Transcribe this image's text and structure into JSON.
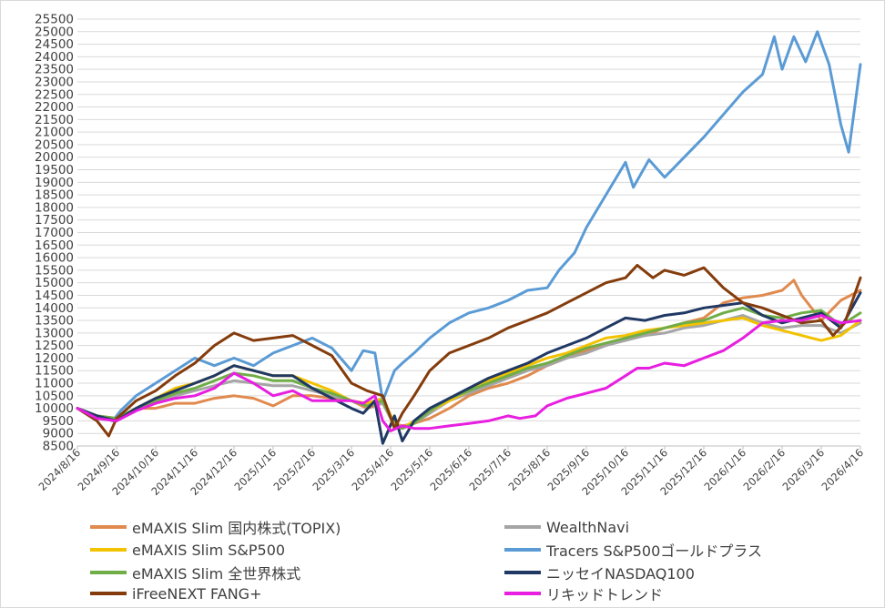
{
  "chart_data": {
    "type": "line",
    "title": "",
    "xlabel": "",
    "ylabel": "",
    "ylim": [
      8500,
      25500
    ],
    "ytick_step": 500,
    "x_tick_labels": [
      "2024/8/16",
      "2024/9/16",
      "2024/10/16",
      "2024/11/16",
      "2024/12/16",
      "2025/1/16",
      "2025/2/16",
      "2025/3/16",
      "2025/4/16",
      "2025/5/16",
      "2025/6/16",
      "2025/7/16",
      "2025/8/16",
      "2025/9/16",
      "2025/10/16",
      "2025/11/16",
      "2025/12/16",
      "2026/1/16",
      "2026/2/16",
      "2026/3/16",
      "2026/4/16"
    ],
    "x_unit": "month index from 2024/8/16",
    "grid": "horizontal",
    "legend_position": "bottom, two columns",
    "series": [
      {
        "name": "eMAXIS Slim 国内株式(TOPIX)",
        "color": "#e08a4f",
        "x": [
          0,
          0.5,
          1,
          1.5,
          2,
          2.5,
          3,
          3.5,
          4,
          4.5,
          5,
          5.5,
          6,
          6.5,
          7,
          7.4,
          7.8,
          8.1,
          8.3,
          8.6,
          9,
          9.5,
          10,
          10.5,
          11,
          11.5,
          12,
          12.5,
          13,
          13.5,
          14,
          14.5,
          15,
          15.5,
          16,
          16.5,
          17,
          17.5,
          18,
          18.3,
          18.5,
          19,
          19.5,
          20
        ],
        "y": [
          10000,
          9700,
          9600,
          10000,
          10000,
          10200,
          10200,
          10400,
          10500,
          10400,
          10100,
          10500,
          10500,
          10400,
          10300,
          10000,
          10200,
          9400,
          9300,
          9400,
          9600,
          10000,
          10500,
          10800,
          11000,
          11300,
          11700,
          12000,
          12300,
          12500,
          12800,
          12900,
          13200,
          13400,
          13600,
          14200,
          14400,
          14500,
          14700,
          15100,
          14500,
          13500,
          14300,
          14700
        ]
      },
      {
        "name": "WealthNavi",
        "color": "#a5a5a5",
        "x": [
          0,
          0.5,
          1,
          1.5,
          2,
          2.5,
          3,
          3.5,
          4,
          4.5,
          5,
          5.5,
          6,
          6.5,
          7,
          7.4,
          7.8,
          8.1,
          8.3,
          8.6,
          9,
          9.5,
          10,
          10.5,
          11,
          11.5,
          12,
          12.5,
          13,
          13.5,
          14,
          14.5,
          15,
          15.5,
          16,
          16.5,
          17,
          17.5,
          18,
          18.5,
          19,
          19.5,
          20
        ],
        "y": [
          10000,
          9700,
          9500,
          10000,
          10200,
          10500,
          10700,
          10900,
          11100,
          11000,
          10900,
          10900,
          10700,
          10500,
          10300,
          10100,
          10200,
          9300,
          9200,
          9400,
          9800,
          10300,
          10600,
          10900,
          11200,
          11500,
          11700,
          12000,
          12200,
          12500,
          12700,
          12900,
          13000,
          13200,
          13300,
          13500,
          13700,
          13400,
          13200,
          13300,
          13300,
          13000,
          13400
        ]
      },
      {
        "name": "eMAXIS Slim S&P500",
        "color": "#f2c200",
        "x": [
          0,
          0.5,
          1,
          1.5,
          2,
          2.5,
          3,
          3.5,
          4,
          4.5,
          5,
          5.5,
          6,
          6.5,
          7,
          7.4,
          7.8,
          8.1,
          8.3,
          8.6,
          9,
          9.5,
          10,
          10.5,
          11,
          11.5,
          12,
          12.5,
          13,
          13.5,
          14,
          14.5,
          15,
          15.5,
          16,
          16.5,
          17,
          17.5,
          18,
          18.5,
          19,
          19.5,
          20
        ],
        "y": [
          10000,
          9700,
          9500,
          10000,
          10400,
          10800,
          11000,
          11300,
          11700,
          11500,
          11300,
          11300,
          11000,
          10700,
          10300,
          10200,
          10400,
          9400,
          9200,
          9500,
          9900,
          10300,
          10700,
          11100,
          11400,
          11700,
          12000,
          12200,
          12500,
          12800,
          12900,
          13100,
          13200,
          13300,
          13400,
          13500,
          13600,
          13300,
          13100,
          12900,
          12700,
          12900,
          13500
        ]
      },
      {
        "name": "Tracers S&P500ゴールドプラス",
        "color": "#5b9bd5",
        "x": [
          0,
          0.5,
          0.9,
          1.1,
          1.5,
          2,
          2.5,
          3,
          3.5,
          4,
          4.5,
          5,
          5.5,
          6,
          6.5,
          7,
          7.3,
          7.6,
          7.8,
          8.1,
          8.3,
          8.6,
          9,
          9.5,
          10,
          10.5,
          11,
          11.5,
          12,
          12.3,
          12.7,
          13,
          13.5,
          14,
          14.2,
          14.6,
          15,
          15.5,
          16,
          16.5,
          17,
          17.5,
          17.8,
          18,
          18.3,
          18.6,
          18.9,
          19.2,
          19.5,
          19.7,
          20
        ],
        "y": [
          10000,
          9700,
          9500,
          9900,
          10500,
          11000,
          11500,
          12000,
          11700,
          12000,
          11700,
          12200,
          12500,
          12800,
          12400,
          11500,
          12300,
          12200,
          10300,
          11500,
          11800,
          12200,
          12800,
          13400,
          13800,
          14000,
          14300,
          14700,
          14800,
          15500,
          16200,
          17200,
          18500,
          19800,
          18800,
          19900,
          19200,
          20000,
          20800,
          21700,
          22600,
          23300,
          24800,
          23500,
          24800,
          23800,
          25000,
          23700,
          21300,
          20200,
          23700
        ]
      },
      {
        "name": "eMAXIS Slim 全世界株式",
        "color": "#70ad47",
        "x": [
          0,
          0.5,
          1,
          1.5,
          2,
          2.5,
          3,
          3.5,
          4,
          4.5,
          5,
          5.5,
          6,
          6.5,
          7,
          7.4,
          7.8,
          8.1,
          8.3,
          8.6,
          9,
          9.5,
          10,
          10.5,
          11,
          11.5,
          12,
          12.5,
          13,
          13.5,
          14,
          14.5,
          15,
          15.5,
          16,
          16.5,
          17,
          17.5,
          18,
          18.5,
          19,
          19.5,
          20
        ],
        "y": [
          10000,
          9700,
          9600,
          10000,
          10300,
          10600,
          10800,
          11100,
          11400,
          11300,
          11100,
          11100,
          10800,
          10600,
          10300,
          10100,
          10300,
          9300,
          9200,
          9400,
          9900,
          10400,
          10700,
          11000,
          11300,
          11600,
          11800,
          12100,
          12400,
          12600,
          12800,
          13000,
          13200,
          13400,
          13500,
          13800,
          14000,
          13700,
          13600,
          13800,
          13900,
          13300,
          13800
        ]
      },
      {
        "name": "ニッセイNASDAQ100",
        "color": "#203864",
        "x": [
          0,
          0.5,
          1,
          1.5,
          2,
          2.5,
          3,
          3.5,
          4,
          4.5,
          5,
          5.5,
          6,
          6.5,
          7,
          7.3,
          7.6,
          7.8,
          8.1,
          8.3,
          8.6,
          9,
          9.5,
          10,
          10.5,
          11,
          11.5,
          12,
          12.5,
          13,
          13.5,
          14,
          14.5,
          15,
          15.5,
          16,
          16.5,
          17,
          17.5,
          18,
          18.5,
          19,
          19.5,
          20
        ],
        "y": [
          10000,
          9700,
          9500,
          10000,
          10400,
          10700,
          11000,
          11300,
          11700,
          11500,
          11300,
          11300,
          10800,
          10400,
          10000,
          9800,
          10300,
          8600,
          9700,
          8700,
          9500,
          10000,
          10400,
          10800,
          11200,
          11500,
          11800,
          12200,
          12500,
          12800,
          13200,
          13600,
          13500,
          13700,
          13800,
          14000,
          14100,
          14200,
          13700,
          13400,
          13600,
          13800,
          13200,
          14600
        ]
      },
      {
        "name": "iFreeNEXT FANG+",
        "color": "#843c0c",
        "x": [
          0,
          0.5,
          0.8,
          1,
          1.5,
          2,
          2.5,
          3,
          3.5,
          4,
          4.5,
          5,
          5.5,
          6,
          6.5,
          7,
          7.4,
          7.8,
          8.1,
          8.3,
          8.6,
          9,
          9.5,
          10,
          10.5,
          11,
          11.5,
          12,
          12.5,
          13,
          13.5,
          14,
          14.3,
          14.7,
          15,
          15.5,
          16,
          16.5,
          17,
          17.5,
          18,
          18.5,
          19,
          19.3,
          19.6,
          20
        ],
        "y": [
          10000,
          9500,
          8900,
          9600,
          10300,
          10700,
          11300,
          11800,
          12500,
          13000,
          12700,
          12800,
          12900,
          12500,
          12100,
          11000,
          10700,
          10500,
          9200,
          9800,
          10500,
          11500,
          12200,
          12500,
          12800,
          13200,
          13500,
          13800,
          14200,
          14600,
          15000,
          15200,
          15700,
          15200,
          15500,
          15300,
          15600,
          14800,
          14200,
          14000,
          13700,
          13400,
          13500,
          12900,
          13400,
          15200
        ]
      },
      {
        "name": "リキッドトレンド",
        "color": "#e81ee0",
        "x": [
          0,
          0.5,
          1,
          1.5,
          2,
          2.5,
          3,
          3.5,
          4,
          4.5,
          5,
          5.5,
          6,
          6.5,
          7,
          7.3,
          7.6,
          7.8,
          8,
          8.3,
          8.6,
          9,
          9.5,
          10,
          10.5,
          11,
          11.3,
          11.7,
          12,
          12.5,
          13,
          13.5,
          14,
          14.3,
          14.6,
          15,
          15.5,
          16,
          16.5,
          17,
          17.5,
          18,
          18.5,
          19,
          19.5,
          20
        ],
        "y": [
          10000,
          9600,
          9500,
          9900,
          10200,
          10400,
          10500,
          10800,
          11400,
          11000,
          10500,
          10700,
          10300,
          10300,
          10300,
          10200,
          10500,
          9500,
          9100,
          9300,
          9200,
          9200,
          9300,
          9400,
          9500,
          9700,
          9600,
          9700,
          10100,
          10400,
          10600,
          10800,
          11300,
          11600,
          11600,
          11800,
          11700,
          12000,
          12300,
          12800,
          13400,
          13500,
          13500,
          13700,
          13400,
          13500
        ]
      }
    ]
  }
}
